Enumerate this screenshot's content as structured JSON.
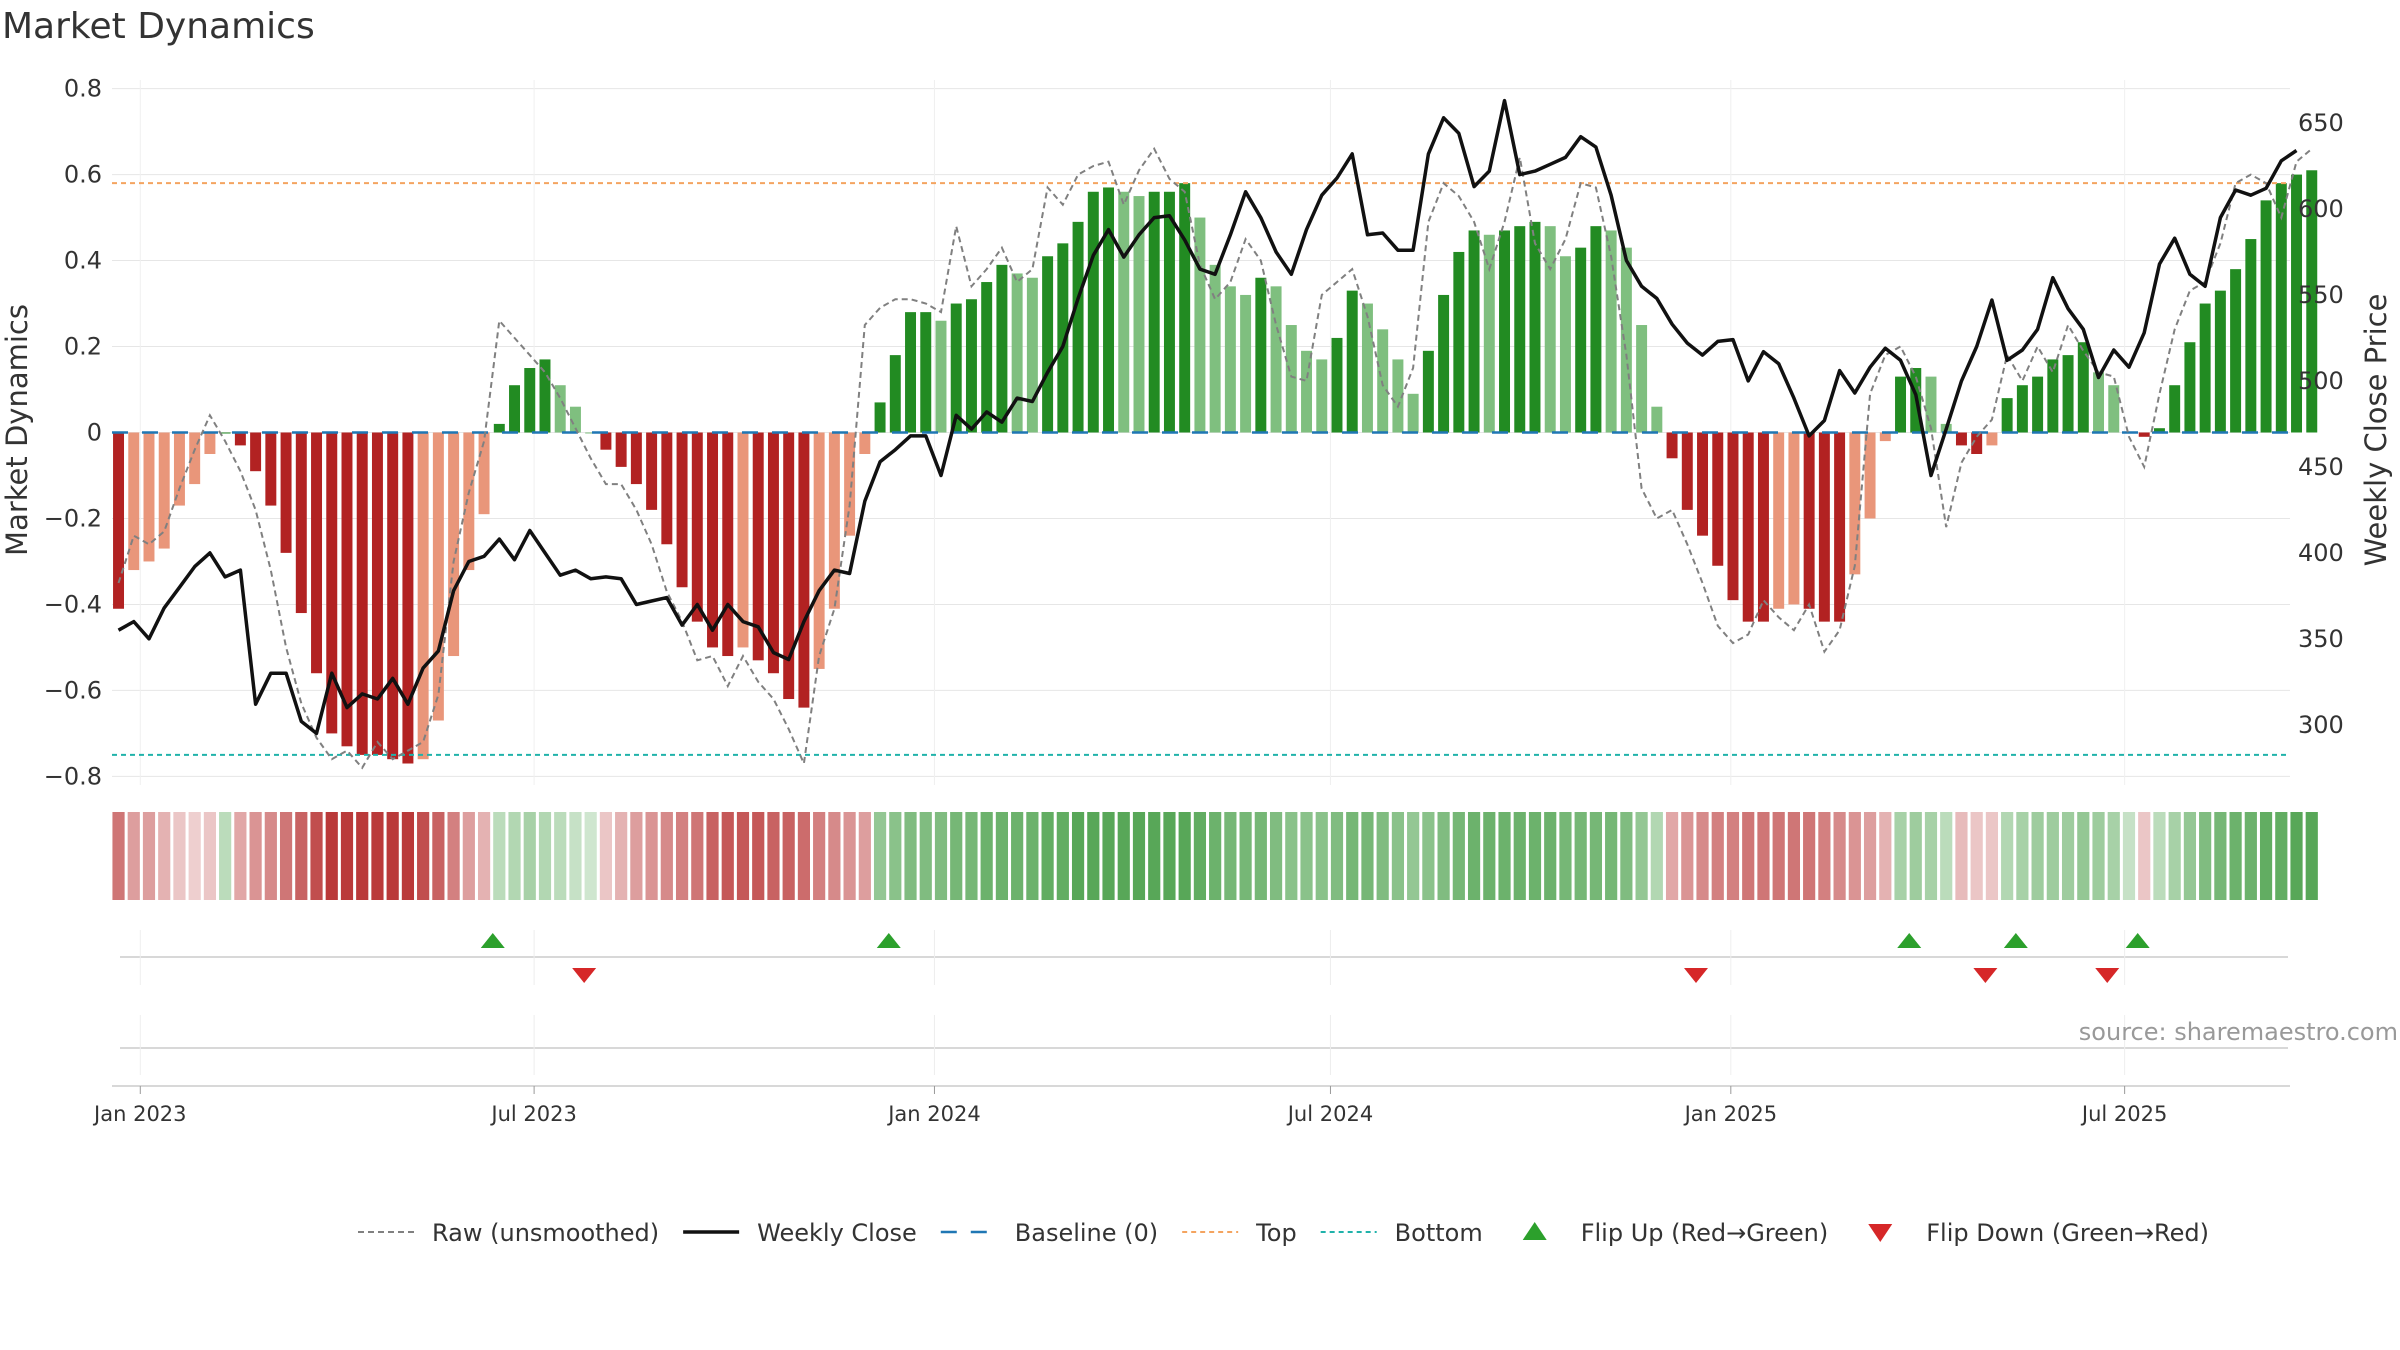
{
  "chart_data": {
    "type": "bar",
    "title": "Market Dynamics",
    "ylabel": "Market Dynamics",
    "y2label": "Weekly Close Price",
    "source": "source: sharemaestro.com",
    "ylim": [
      -0.82,
      0.82
    ],
    "y_ticks": [
      -0.8,
      -0.6,
      -0.4,
      -0.2,
      0,
      0.2,
      0.4,
      0.6,
      0.8
    ],
    "y_tick_labels": [
      "−0.8",
      "−0.6",
      "−0.4",
      "−0.2",
      "0",
      "0.2",
      "0.4",
      "0.6",
      "0.8"
    ],
    "y2lim": [
      265,
      675
    ],
    "y2_ticks": [
      300,
      350,
      400,
      450,
      500,
      550,
      600,
      650
    ],
    "y2_tick_labels": [
      "300",
      "350",
      "400",
      "450",
      "500",
      "550",
      "600",
      "650"
    ],
    "x_start": "2022-12-19",
    "x_end": "2025-09-15",
    "x_ticks": [
      {
        "date": "2023-01-01",
        "label": "Jan 2023"
      },
      {
        "date": "2023-07-01",
        "label": "Jul 2023"
      },
      {
        "date": "2024-01-01",
        "label": "Jan 2024"
      },
      {
        "date": "2024-07-01",
        "label": "Jul 2024"
      },
      {
        "date": "2025-01-01",
        "label": "Jan 2025"
      },
      {
        "date": "2025-07-01",
        "label": "Jul 2025"
      }
    ],
    "top_threshold": 0.58,
    "bottom_threshold": -0.75,
    "baseline": 0,
    "colors": {
      "strong_green": "#228b22",
      "light_green": "#7fbf7f",
      "strong_red": "#b22222",
      "light_red": "#e9967a",
      "raw": "#808080",
      "close": "#111111",
      "baseline": "#1f77b4",
      "top": "#f4a460",
      "bottom": "#20b2aa",
      "flip_up": "#2ca02c",
      "flip_down": "#d62728"
    },
    "series": [
      {
        "name": "Market Dynamics",
        "values": [
          -0.41,
          -0.32,
          -0.3,
          -0.27,
          -0.17,
          -0.12,
          -0.05,
          0,
          -0.03,
          -0.09,
          -0.17,
          -0.28,
          -0.42,
          -0.56,
          -0.7,
          -0.73,
          -0.75,
          -0.75,
          -0.76,
          -0.77,
          -0.76,
          -0.67,
          -0.52,
          -0.32,
          -0.19,
          0.02,
          0.11,
          0.15,
          0.17,
          0.11,
          0.06,
          0,
          -0.04,
          -0.08,
          -0.12,
          -0.18,
          -0.26,
          -0.36,
          -0.44,
          -0.5,
          -0.52,
          -0.5,
          -0.53,
          -0.56,
          -0.62,
          -0.64,
          -0.55,
          -0.41,
          -0.24,
          -0.05,
          0.07,
          0.18,
          0.28,
          0.28,
          0.26,
          0.3,
          0.31,
          0.35,
          0.39,
          0.37,
          0.36,
          0.41,
          0.44,
          0.49,
          0.56,
          0.57,
          0.56,
          0.55,
          0.56,
          0.56,
          0.58,
          0.5,
          0.39,
          0.34,
          0.32,
          0.36,
          0.34,
          0.25,
          0.19,
          0.17,
          0.22,
          0.33,
          0.3,
          0.24,
          0.17,
          0.09,
          0.19,
          0.32,
          0.42,
          0.47,
          0.46,
          0.47,
          0.48,
          0.49,
          0.48,
          0.41,
          0.43,
          0.48,
          0.47,
          0.43,
          0.25,
          0.06,
          -0.06,
          -0.18,
          -0.24,
          -0.31,
          -0.39,
          -0.44,
          -0.44,
          -0.41,
          -0.4,
          -0.41,
          -0.44,
          -0.44,
          -0.33,
          -0.2,
          -0.02,
          0.13,
          0.15,
          0.13,
          0.02,
          -0.03,
          -0.05,
          -0.03,
          0.08,
          0.11,
          0.13,
          0.17,
          0.18,
          0.21,
          0.14,
          0.11,
          0,
          -0.01,
          0.01,
          0.11,
          0.21,
          0.3,
          0.33,
          0.38,
          0.45,
          0.54,
          0.58,
          0.6,
          0.61
        ]
      },
      {
        "name": "Raw (unsmoothed)",
        "values": [
          -0.35,
          -0.24,
          -0.26,
          -0.23,
          -0.13,
          -0.04,
          0.04,
          -0.02,
          -0.09,
          -0.18,
          -0.32,
          -0.5,
          -0.63,
          -0.71,
          -0.76,
          -0.74,
          -0.78,
          -0.72,
          -0.76,
          -0.74,
          -0.72,
          -0.61,
          -0.3,
          -0.14,
          -0.02,
          0.26,
          0.22,
          0.18,
          0.14,
          0.08,
          0.01,
          -0.06,
          -0.12,
          -0.12,
          -0.18,
          -0.26,
          -0.37,
          -0.44,
          -0.53,
          -0.52,
          -0.59,
          -0.52,
          -0.58,
          -0.62,
          -0.69,
          -0.77,
          -0.52,
          -0.41,
          -0.17,
          0.25,
          0.29,
          0.31,
          0.31,
          0.3,
          0.28,
          0.48,
          0.34,
          0.38,
          0.43,
          0.35,
          0.38,
          0.57,
          0.53,
          0.6,
          0.62,
          0.63,
          0.53,
          0.61,
          0.66,
          0.59,
          0.56,
          0.39,
          0.31,
          0.35,
          0.45,
          0.4,
          0.25,
          0.13,
          0.12,
          0.32,
          0.35,
          0.38,
          0.27,
          0.11,
          0.06,
          0.15,
          0.49,
          0.58,
          0.55,
          0.49,
          0.38,
          0.49,
          0.64,
          0.44,
          0.38,
          0.45,
          0.58,
          0.57,
          0.41,
          0.18,
          -0.13,
          -0.2,
          -0.18,
          -0.26,
          -0.35,
          -0.45,
          -0.49,
          -0.47,
          -0.39,
          -0.43,
          -0.46,
          -0.4,
          -0.51,
          -0.46,
          -0.31,
          0.09,
          0.18,
          0.2,
          0.13,
          0.01,
          -0.22,
          -0.07,
          -0.01,
          0.03,
          0.18,
          0.12,
          0.2,
          0.14,
          0.25,
          0.19,
          0.14,
          0.13,
          -0.01,
          -0.08,
          0.09,
          0.24,
          0.33,
          0.35,
          0.44,
          0.58,
          0.6,
          0.58,
          0.5,
          0.63,
          0.66
        ]
      },
      {
        "name": "Weekly Close",
        "values": [
          355,
          360,
          350,
          368,
          380,
          392,
          400,
          386,
          390,
          312,
          330,
          330,
          302,
          295,
          330,
          310,
          318,
          315,
          327,
          312,
          333,
          343,
          378,
          395,
          398,
          408,
          396,
          413,
          400,
          387,
          390,
          385,
          386,
          385,
          370,
          372,
          374,
          358,
          370,
          355,
          370,
          360,
          357,
          342,
          338,
          360,
          378,
          390,
          388,
          430,
          453,
          460,
          468,
          468,
          445,
          480,
          472,
          482,
          476,
          490,
          488,
          505,
          520,
          548,
          573,
          588,
          572,
          585,
          595,
          596,
          582,
          565,
          562,
          585,
          610,
          595,
          575,
          562,
          588,
          608,
          618,
          632,
          585,
          586,
          576,
          576,
          632,
          653,
          644,
          613,
          622,
          663,
          620,
          622,
          626,
          630,
          642,
          636,
          608,
          570,
          555,
          548,
          533,
          522,
          515,
          523,
          524,
          500,
          517,
          510,
          490,
          468,
          477,
          506,
          493,
          508,
          519,
          512,
          492,
          445,
          472,
          500,
          520,
          547,
          512,
          518,
          530,
          560,
          542,
          530,
          502,
          518,
          508,
          528,
          568,
          583,
          562,
          555,
          595,
          611,
          608,
          612,
          628,
          634
        ]
      }
    ],
    "regime_values": [
      0.6,
      0.4,
      0.4,
      0.3,
      0.2,
      0.15,
      0.2,
      0.25,
      0.35,
      0.45,
      0.5,
      0.6,
      0.7,
      0.8,
      0.9,
      0.9,
      0.9,
      0.9,
      0.9,
      0.9,
      0.8,
      0.7,
      0.55,
      0.4,
      0.3,
      0.25,
      0.3,
      0.35,
      0.3,
      0.25,
      0.2,
      0.15,
      0.2,
      0.3,
      0.4,
      0.45,
      0.5,
      0.55,
      0.6,
      0.7,
      0.75,
      0.75,
      0.75,
      0.7,
      0.7,
      0.65,
      0.55,
      0.5,
      0.45,
      0.4,
      0.45,
      0.5,
      0.55,
      0.55,
      0.55,
      0.6,
      0.6,
      0.65,
      0.65,
      0.65,
      0.65,
      0.7,
      0.7,
      0.75,
      0.75,
      0.75,
      0.75,
      0.75,
      0.75,
      0.75,
      0.75,
      0.7,
      0.65,
      0.6,
      0.6,
      0.6,
      0.55,
      0.5,
      0.5,
      0.5,
      0.55,
      0.6,
      0.6,
      0.55,
      0.5,
      0.45,
      0.5,
      0.55,
      0.6,
      0.65,
      0.65,
      0.65,
      0.65,
      0.65,
      0.65,
      0.6,
      0.6,
      0.6,
      0.6,
      0.55,
      0.45,
      0.3,
      0.35,
      0.45,
      0.5,
      0.55,
      0.55,
      0.6,
      0.6,
      0.6,
      0.6,
      0.6,
      0.55,
      0.5,
      0.45,
      0.4,
      0.3,
      0.35,
      0.4,
      0.35,
      0.25,
      0.25,
      0.2,
      0.2,
      0.3,
      0.35,
      0.4,
      0.4,
      0.4,
      0.45,
      0.4,
      0.35,
      0.2,
      0.2,
      0.25,
      0.35,
      0.45,
      0.55,
      0.6,
      0.65,
      0.65,
      0.7,
      0.7,
      0.75,
      0.75
    ],
    "flips": [
      {
        "date": "2023-06-12",
        "direction": "up"
      },
      {
        "date": "2023-07-24",
        "direction": "down"
      },
      {
        "date": "2023-12-11",
        "direction": "up"
      },
      {
        "date": "2024-12-16",
        "direction": "down"
      },
      {
        "date": "2025-03-24",
        "direction": "up"
      },
      {
        "date": "2025-04-28",
        "direction": "down"
      },
      {
        "date": "2025-05-12",
        "direction": "up"
      },
      {
        "date": "2025-06-23",
        "direction": "down"
      },
      {
        "date": "2025-07-07",
        "direction": "up"
      }
    ],
    "legend": [
      {
        "key": "raw",
        "label": "Raw (unsmoothed)"
      },
      {
        "key": "close",
        "label": "Weekly Close"
      },
      {
        "key": "baseline",
        "label": "Baseline (0)"
      },
      {
        "key": "top",
        "label": "Top"
      },
      {
        "key": "bottom",
        "label": "Bottom"
      },
      {
        "key": "flip_up",
        "label": "Flip Up (Red→Green)"
      },
      {
        "key": "flip_down",
        "label": "Flip Down (Green→Red)"
      }
    ]
  }
}
